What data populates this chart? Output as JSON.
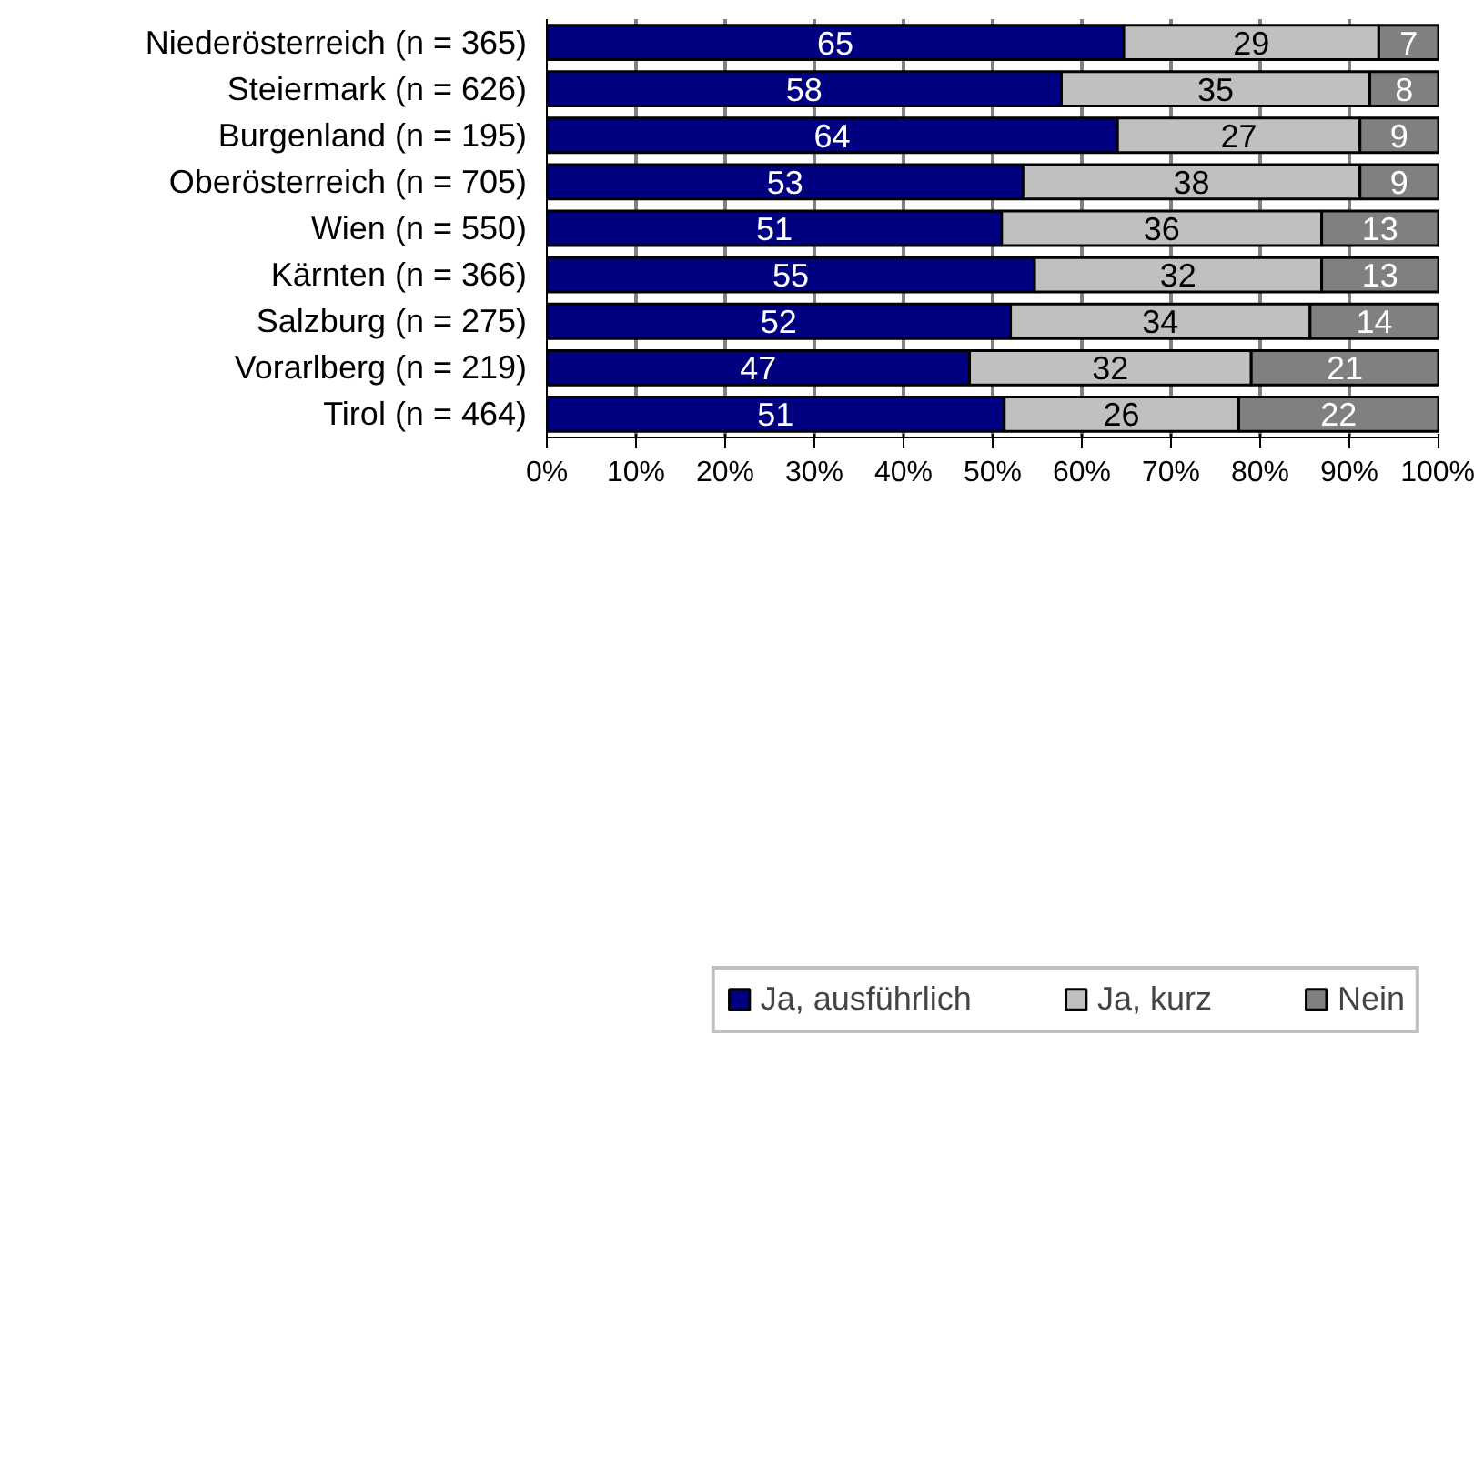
{
  "chart_data": {
    "type": "bar",
    "orientation": "horizontal",
    "stacked": true,
    "categories": [
      "Niederösterreich (n = 365)",
      "Steiermark (n = 626)",
      "Burgenland (n = 195)",
      "Oberösterreich (n = 705)",
      "Wien (n = 550)",
      "Kärnten (n = 366)",
      "Salzburg (n = 275)",
      "Vorarlberg (n = 219)",
      "Tirol (n = 464)"
    ],
    "series": [
      {
        "name": "Ja, ausführlich",
        "color": "#000080",
        "values": [
          64.7,
          57.7,
          64.0,
          53.4,
          51.0,
          54.7,
          52.0,
          47.4,
          51.3
        ],
        "value_labels": [
          "65",
          "58",
          "64",
          "53",
          "51",
          "55",
          "52",
          "47",
          "51"
        ]
      },
      {
        "name": "Ja, kurz",
        "color": "#c0c0c0",
        "values": [
          28.6,
          34.6,
          27.2,
          37.8,
          35.9,
          32.2,
          33.6,
          31.6,
          26.3
        ],
        "value_labels": [
          "29",
          "35",
          "27",
          "38",
          "36",
          "32",
          "34",
          "32",
          "26"
        ]
      },
      {
        "name": "Nein",
        "color": "#808080",
        "values": [
          6.7,
          7.7,
          8.8,
          8.8,
          13.1,
          13.1,
          14.4,
          21.0,
          22.4
        ],
        "value_labels": [
          "7",
          "8",
          "9",
          "9",
          "13",
          "13",
          "14",
          "21",
          "22"
        ]
      }
    ],
    "xlim": [
      0,
      100
    ],
    "xticks": [
      {
        "value": 0,
        "label": "0%"
      },
      {
        "value": 10,
        "label": "10%"
      },
      {
        "value": 20,
        "label": "20%"
      },
      {
        "value": 30,
        "label": "30%"
      },
      {
        "value": 40,
        "label": "40%"
      },
      {
        "value": 50,
        "label": "50%"
      },
      {
        "value": 60,
        "label": "60%"
      },
      {
        "value": 70,
        "label": "70%"
      },
      {
        "value": 80,
        "label": "80%"
      },
      {
        "value": 90,
        "label": "90%"
      },
      {
        "value": 100,
        "label": "100%"
      }
    ],
    "grid": "x",
    "legend": "bottom"
  }
}
